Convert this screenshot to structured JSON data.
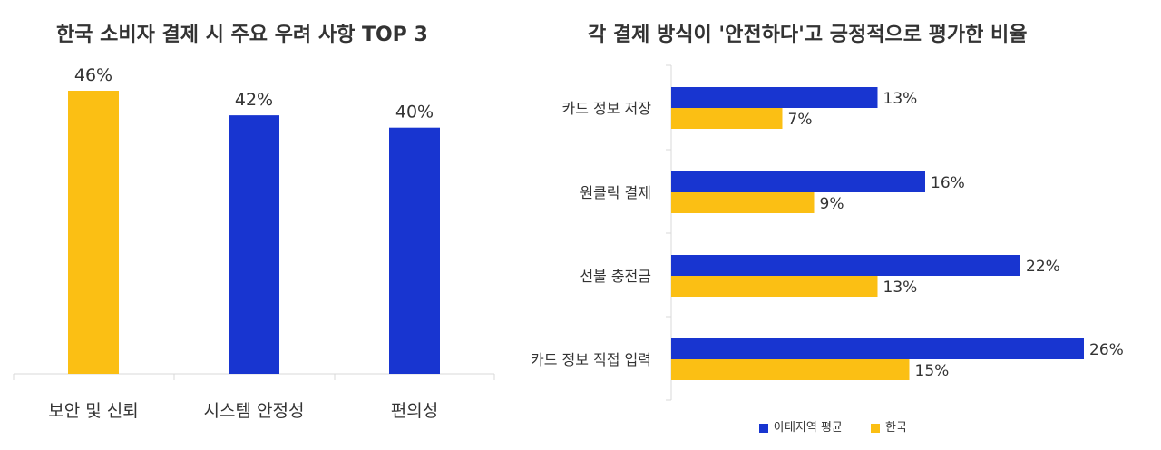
{
  "chart_data": [
    {
      "type": "bar",
      "title": "한국 소비자 결제 시 주요 우려 사항 TOP 3",
      "categories": [
        "보안 및 신뢰",
        "시스템 안정성",
        "편의성"
      ],
      "values": [
        46,
        42,
        40
      ],
      "value_labels": [
        "46%",
        "42%",
        "40%"
      ],
      "bar_colors": [
        "#FBBF14",
        "#1835D0",
        "#1835D0"
      ],
      "ylim": [
        0,
        46
      ],
      "grid": false
    },
    {
      "type": "bar",
      "orientation": "horizontal",
      "title": "각 결제 방식이 '안전하다'고 긍정적으로 평가한 비율",
      "categories": [
        "카드 정보 저장",
        "원클릭 결제",
        "선불 충전금",
        "카드 정보 직접 입력"
      ],
      "series": [
        {
          "name": "아태지역 평균",
          "values": [
            13,
            16,
            22,
            26
          ],
          "labels": [
            "13%",
            "16%",
            "22%",
            "26%"
          ],
          "color": "#1835D0"
        },
        {
          "name": "한국",
          "values": [
            7,
            9,
            13,
            15
          ],
          "labels": [
            "7%",
            "9%",
            "13%",
            "15%"
          ],
          "color": "#FBBF14"
        }
      ],
      "xlim": [
        0,
        26
      ],
      "legend": "bottom",
      "grid": false
    }
  ]
}
